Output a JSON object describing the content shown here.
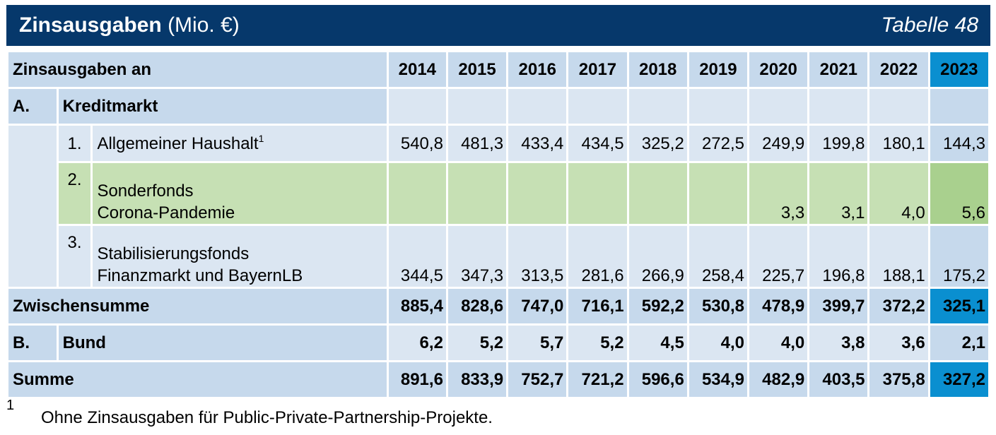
{
  "title": {
    "main": "Zinsausgaben",
    "unit": "(Mio. €)",
    "table_no": "Tabelle 48"
  },
  "header": {
    "label": "Zinsausgaben an",
    "years": [
      "2014",
      "2015",
      "2016",
      "2017",
      "2018",
      "2019",
      "2020",
      "2021",
      "2022",
      "2023"
    ]
  },
  "section_a": {
    "letter": "A.",
    "label": "Kreditmarkt"
  },
  "rows": [
    {
      "num": "1.",
      "label_line1": "Allgemeiner Haushalt",
      "footnote_ref": "1",
      "label_line2": "",
      "values": [
        "540,8",
        "481,3",
        "433,4",
        "434,5",
        "325,2",
        "272,5",
        "249,9",
        "199,8",
        "180,1",
        "144,3"
      ]
    },
    {
      "num": "2.",
      "label_line1": "Sonderfonds",
      "label_line2": "Corona-Pandemie",
      "values": [
        "",
        "",
        "",
        "",
        "",
        "",
        "3,3",
        "3,1",
        "4,0",
        "5,6"
      ]
    },
    {
      "num": "3.",
      "label_line1": "Stabilisierungsfonds",
      "label_line2": "Finanzmarkt und BayernLB",
      "values": [
        "344,5",
        "347,3",
        "313,5",
        "281,6",
        "266,9",
        "258,4",
        "225,7",
        "196,8",
        "188,1",
        "175,2"
      ]
    }
  ],
  "zwischensumme": {
    "label": "Zwischensumme",
    "values": [
      "885,4",
      "828,6",
      "747,0",
      "716,1",
      "592,2",
      "530,8",
      "478,9",
      "399,7",
      "372,2",
      "325,1"
    ]
  },
  "section_b": {
    "letter": "B.",
    "label": "Bund",
    "values": [
      "6,2",
      "5,2",
      "5,7",
      "5,2",
      "4,5",
      "4,0",
      "4,0",
      "3,8",
      "3,6",
      "2,1"
    ]
  },
  "summe": {
    "label": "Summe",
    "values": [
      "891,6",
      "833,9",
      "752,7",
      "721,2",
      "596,6",
      "534,9",
      "482,9",
      "403,5",
      "375,8",
      "327,2"
    ]
  },
  "footnote": {
    "mark": "1",
    "text": "Ohne Zinsausgaben für Public-Private-Partnership-Projekte."
  },
  "colors": {
    "title_bg": "#06386b",
    "light_blue": "#c6d9ec",
    "very_light_blue": "#dbe6f2",
    "green": "#c6e0b4",
    "green_2023": "#a9d08e",
    "accent_2023": "#0a8fd0"
  }
}
